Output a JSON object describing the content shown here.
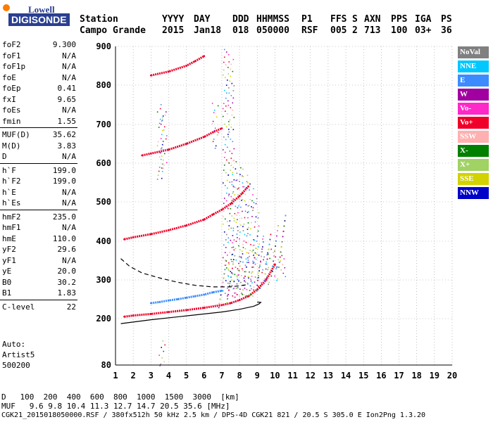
{
  "logo": {
    "top": "Lowell",
    "bottom": "DIGISONDE"
  },
  "header": {
    "labels": [
      "Station",
      "YYYY",
      "DAY",
      "DDD",
      "HHMMSS",
      "P1",
      "FFS",
      "S",
      "AXN",
      "PPS",
      "IGA",
      "PS"
    ],
    "values": [
      "Campo Grande",
      "2015",
      "Jan18",
      "018",
      "050000",
      "RSF",
      "005",
      "2",
      "713",
      "100",
      "03+",
      "36"
    ]
  },
  "params": [
    {
      "label": "foF2",
      "value": "9.300"
    },
    {
      "label": "foF1",
      "value": "N/A"
    },
    {
      "label": "foF1p",
      "value": "N/A"
    },
    {
      "label": "foE",
      "value": "N/A"
    },
    {
      "label": "foEp",
      "value": "0.41"
    },
    {
      "label": "fxI",
      "value": "9.65"
    },
    {
      "label": "foEs",
      "value": "N/A"
    },
    {
      "label": "fmin",
      "value": "1.55"
    },
    {
      "label": "MUF(D)",
      "value": "35.62"
    },
    {
      "label": "M(D)",
      "value": "3.83"
    },
    {
      "label": "D",
      "value": "N/A"
    },
    {
      "label": "h`F",
      "value": "199.0"
    },
    {
      "label": "h`F2",
      "value": "199.0"
    },
    {
      "label": "h`E",
      "value": "N/A"
    },
    {
      "label": "h`Es",
      "value": "N/A"
    },
    {
      "label": "hmF2",
      "value": "235.0"
    },
    {
      "label": "hmF1",
      "value": "N/A"
    },
    {
      "label": "hmE",
      "value": "110.0"
    },
    {
      "label": "yF2",
      "value": "29.6"
    },
    {
      "label": "yF1",
      "value": "N/A"
    },
    {
      "label": "yE",
      "value": "20.0"
    },
    {
      "label": "B0",
      "value": "30.2"
    },
    {
      "label": "B1",
      "value": "1.83"
    },
    {
      "label": "C-level",
      "value": "22"
    }
  ],
  "auto": {
    "l1": "Auto:",
    "l2": "Artist5",
    "l3": "500200"
  },
  "legend": [
    {
      "label": "NoVal",
      "color": "#808080"
    },
    {
      "label": "NNE",
      "color": "#00c8ff"
    },
    {
      "label": "E",
      "color": "#3c8cff"
    },
    {
      "label": "W",
      "color": "#a000a0"
    },
    {
      "label": "Vo-",
      "color": "#ff28c8"
    },
    {
      "label": "Vo+",
      "color": "#f00028"
    },
    {
      "label": "SSW",
      "color": "#ffb0b0"
    },
    {
      "label": "X-",
      "color": "#008000"
    },
    {
      "label": "X+",
      "color": "#a0d264"
    },
    {
      "label": "SSE",
      "color": "#d2d200"
    },
    {
      "label": "NNW",
      "color": "#0000c8"
    }
  ],
  "footer": {
    "d_label": "D",
    "d_values": [
      "100",
      "200",
      "400",
      "600",
      "800",
      "1000",
      "1500",
      "3000",
      "[km]"
    ],
    "muf_label": "MUF",
    "muf_values": [
      "9.6",
      "9.8",
      "10.4",
      "11.3",
      "12.7",
      "14.7",
      "20.5",
      "35.6",
      "[MHz]"
    ],
    "line": "CGK21_2015018050000.RSF / 380fx512h 50 kHz 2.5 km / DPS-4D CGK21 821 / 20.5 S 305.0 E Ion2Png 1.3.20"
  },
  "chart_data": {
    "type": "scatter",
    "xlim": [
      1,
      20
    ],
    "ylim": [
      80,
      900
    ],
    "x_ticks": [
      1,
      2,
      3,
      4,
      5,
      6,
      7,
      8,
      9,
      10,
      11,
      12,
      13,
      14,
      15,
      16,
      17,
      18,
      19,
      20
    ],
    "y_ticks": [
      80,
      200,
      300,
      400,
      500,
      600,
      700,
      800,
      900
    ],
    "grid": true,
    "traces": [
      {
        "name": "F2 trace 1st hop",
        "color": "#f00028",
        "x": [
          1.5,
          2,
          3,
          4,
          5,
          6,
          7,
          7.5,
          8,
          8.5,
          9,
          9.5,
          10
        ],
        "y": [
          205,
          208,
          212,
          217,
          222,
          228,
          235,
          240,
          248,
          258,
          275,
          300,
          340
        ]
      },
      {
        "name": "low-frequency trace",
        "color": "#3c8cff",
        "x": [
          3,
          3.5,
          4,
          4.5,
          5,
          5.5,
          6,
          6.5,
          7
        ],
        "y": [
          240,
          243,
          247,
          250,
          254,
          258,
          262,
          268,
          272
        ]
      },
      {
        "name": "2nd hop",
        "color": "#f00028",
        "x": [
          1.5,
          2,
          3,
          4,
          5,
          6,
          6.5,
          7,
          7.5,
          8,
          8.5
        ],
        "y": [
          405,
          410,
          418,
          428,
          440,
          455,
          468,
          480,
          495,
          515,
          540
        ]
      },
      {
        "name": "3rd hop",
        "color": "#f00028",
        "x": [
          2.5,
          3,
          4,
          5,
          6,
          6.5,
          7
        ],
        "y": [
          620,
          625,
          635,
          650,
          668,
          680,
          690
        ]
      },
      {
        "name": "4th hop",
        "color": "#f00028",
        "x": [
          3,
          4,
          5,
          5.5,
          6
        ],
        "y": [
          825,
          835,
          850,
          862,
          875
        ]
      }
    ],
    "profile_solid": {
      "x": [
        1.3,
        3,
        5,
        7,
        8,
        8.8,
        9.1,
        9.2,
        9.0
      ],
      "y": [
        187,
        197,
        207,
        217,
        224,
        232,
        238,
        242,
        243
      ]
    },
    "profile_dashed": {
      "x": [
        1.3,
        1.8,
        2.5,
        3.5,
        4.5,
        5.5,
        6.5,
        7.5,
        8.5
      ],
      "y": [
        355,
        335,
        318,
        305,
        294,
        286,
        282,
        282,
        288
      ]
    }
  }
}
